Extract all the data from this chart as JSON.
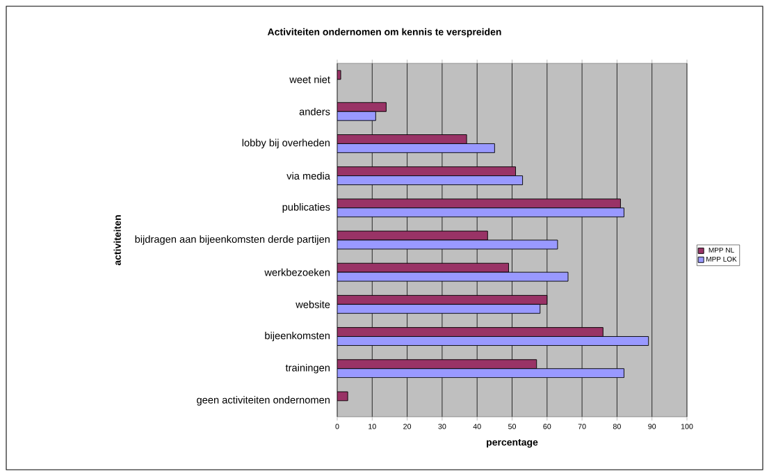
{
  "chart_data": {
    "type": "bar",
    "orientation": "horizontal",
    "title": "Activiteiten ondernomen om kennis te verspreiden",
    "xlabel": "percentage",
    "ylabel": "activiteiten",
    "categories": [
      "weet niet",
      "anders",
      "lobby bij overheden",
      "via media",
      "publicaties",
      "bijdragen aan bijeenkomsten derde partijen",
      "werkbezoeken",
      "website",
      "bijeenkomsten",
      "trainingen",
      "geen activiteiten ondernomen"
    ],
    "series": [
      {
        "name": "MPP NL",
        "color": "#993366",
        "values": [
          1,
          14,
          37,
          51,
          81,
          43,
          49,
          60,
          76,
          57,
          3
        ]
      },
      {
        "name": "MPP LOK",
        "color": "#9999ff",
        "values": [
          null,
          11,
          45,
          53,
          82,
          63,
          66,
          58,
          89,
          82,
          null
        ]
      }
    ],
    "xlim": [
      0,
      100
    ],
    "xticks": [
      0,
      10,
      20,
      30,
      40,
      50,
      60,
      70,
      80,
      90,
      100
    ],
    "grid": "x",
    "legend": "right"
  }
}
